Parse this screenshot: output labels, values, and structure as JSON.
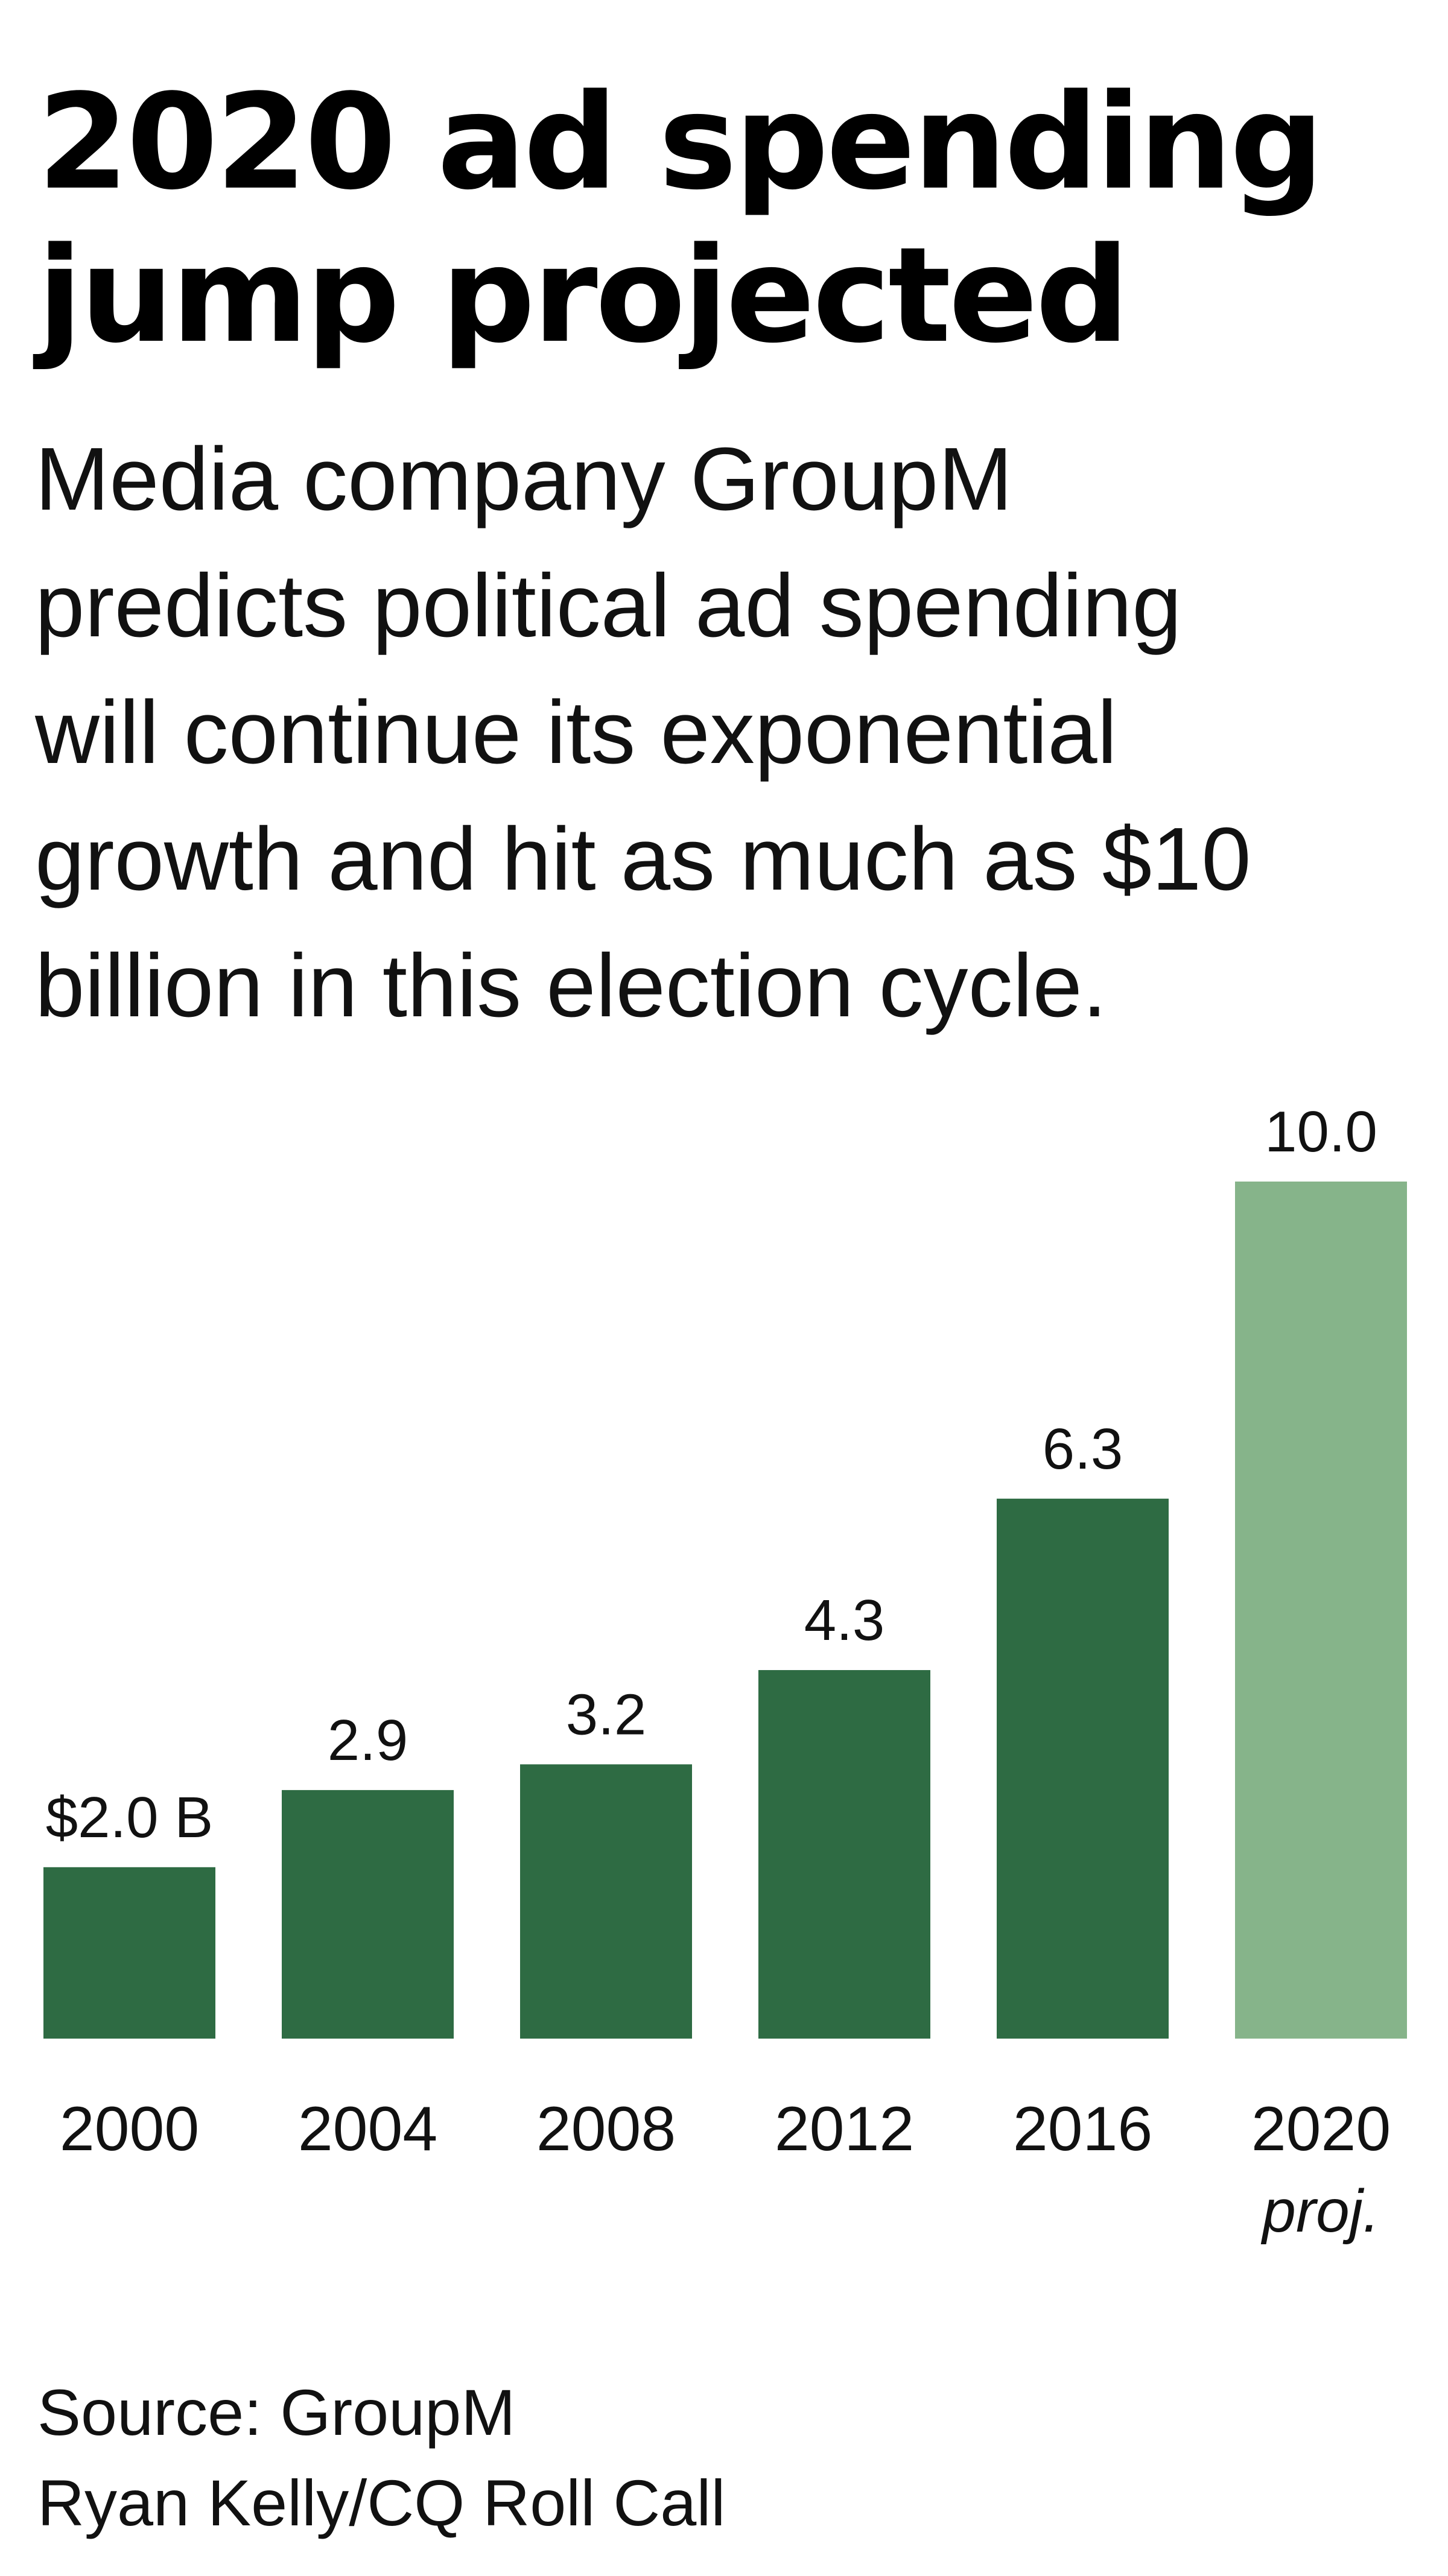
{
  "title_line1": "2020 ad spending",
  "title_line2": "jump projected",
  "subtitle_lines": [
    "Media company GroupM",
    "predicts political ad spending",
    "will continue its exponential",
    "growth and hit as much as $10",
    "billion in this election cycle."
  ],
  "source": "Source: GroupM",
  "credit": "Ryan Kelly/CQ Roll Call",
  "chart_data": {
    "type": "bar",
    "title": "2020 ad spending jump projected",
    "unit": "$ billions",
    "categories": [
      "2000",
      "2004",
      "2008",
      "2012",
      "2016",
      "2020"
    ],
    "category_notes": [
      "",
      "",
      "",
      "",
      "",
      "proj."
    ],
    "values": [
      2.0,
      2.9,
      3.2,
      4.3,
      6.3,
      10.0
    ],
    "value_labels": [
      "$2.0 B",
      "2.9",
      "3.2",
      "4.3",
      "6.3",
      "10.0"
    ],
    "projected": [
      false,
      false,
      false,
      false,
      false,
      true
    ],
    "colors": {
      "actual": "#2e6b43",
      "projected": "#86b48a"
    },
    "ylim": [
      0,
      10
    ],
    "grid": false,
    "legend": false,
    "xlabel": "",
    "ylabel": ""
  }
}
